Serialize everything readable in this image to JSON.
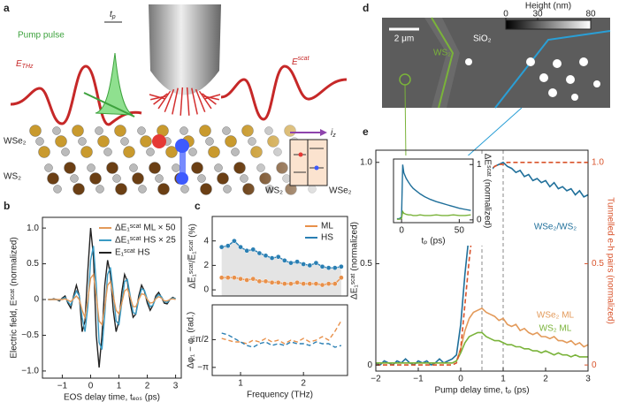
{
  "panel_labels": [
    "a",
    "b",
    "c",
    "d",
    "e"
  ],
  "panel_a": {
    "pump_pulse": "Pump pulse",
    "t_p": [
      "t",
      "p"
    ],
    "e_thz": [
      "E",
      "THz"
    ],
    "e_scat": [
      "E",
      "scat"
    ],
    "i_z": [
      "i",
      "z"
    ],
    "layers": [
      "WSe₂",
      "WS₂"
    ],
    "junction": [
      "WS₂",
      "WSe₂"
    ]
  },
  "panel_d": {
    "scale_bar": "2 μm",
    "substrate": "SiO₂",
    "flake": "WS₂",
    "colorbar": {
      "title": "Height (nm)",
      "lim": [
        0,
        80
      ],
      "ticks": [
        0,
        30,
        80
      ]
    }
  },
  "chart_data": [
    {
      "type": "line",
      "xlabel": "EOS delay time, tₑₒₛ (ps)",
      "ylabel": "Electric field, Eˢᶜᵃᵗ (normalized)",
      "x": [
        -1.5,
        -1.4,
        -1.3,
        -1.2,
        -1.1,
        -1,
        -0.9,
        -0.8,
        -0.7,
        -0.6,
        -0.5,
        -0.4,
        -0.3,
        -0.2,
        -0.1,
        0,
        0.1,
        0.2,
        0.3,
        0.4,
        0.5,
        0.6,
        0.7,
        0.8,
        0.9,
        1,
        1.1,
        1.2,
        1.3,
        1.4,
        1.5,
        1.6,
        1.7,
        1.8,
        1.9,
        2,
        2.1,
        2.2,
        2.3,
        2.4,
        2.5,
        2.6,
        2.7,
        2.8,
        2.9,
        3
      ],
      "series": [
        {
          "name": "ΔE₁ˢᶜᵃᵗ ML × 50",
          "color": "#e39a5a",
          "values": [
            0,
            0,
            0,
            0,
            0,
            0,
            0.01,
            -0.01,
            -0.03,
            0.01,
            0.05,
            0,
            -0.15,
            -0.25,
            0,
            0.3,
            0.35,
            0.05,
            -0.3,
            -0.35,
            -0.1,
            0.2,
            0.25,
            0.05,
            -0.15,
            -0.2,
            -0.05,
            0.12,
            0.15,
            0.03,
            -0.1,
            -0.1,
            0,
            0.08,
            0.07,
            0,
            -0.05,
            -0.04,
            0.01,
            0.04,
            0.02,
            -0.02,
            -0.02,
            0,
            0.01,
            0
          ]
        },
        {
          "name": "ΔE₁ˢᶜᵃᵗ HS × 25",
          "color": "#3a9bc4",
          "values": [
            0,
            0,
            0,
            0,
            -0.01,
            0.01,
            0.03,
            -0.03,
            -0.08,
            0.03,
            0.12,
            0.05,
            -0.25,
            -0.45,
            -0.1,
            0.55,
            0.75,
            0.2,
            -0.6,
            -0.7,
            -0.2,
            0.35,
            0.45,
            0.1,
            -0.3,
            -0.35,
            -0.05,
            0.25,
            0.28,
            0.05,
            -0.18,
            -0.2,
            0,
            0.15,
            0.13,
            0,
            -0.1,
            -0.08,
            0.02,
            0.07,
            0.04,
            -0.03,
            -0.04,
            0,
            0.02,
            0.01
          ]
        },
        {
          "name": "E₁ˢᶜᵃᵗ HS",
          "color": "#222222",
          "values": [
            0,
            0,
            0.01,
            0,
            -0.02,
            0.02,
            0.05,
            -0.05,
            -0.12,
            0.05,
            0.2,
            0.05,
            -0.45,
            -0.3,
            0.4,
            1,
            0.6,
            -0.5,
            -0.95,
            -0.5,
            0.2,
            0.55,
            0.35,
            -0.15,
            -0.45,
            -0.3,
            0.1,
            0.35,
            0.25,
            -0.05,
            -0.25,
            -0.2,
            0.05,
            0.2,
            0.12,
            -0.05,
            -0.15,
            -0.08,
            0.05,
            0.1,
            0.03,
            -0.05,
            -0.06,
            0,
            0.03,
            0.01
          ]
        }
      ],
      "xlim": [
        -1.7,
        3.2
      ],
      "xticks": [
        {
          "value": -1,
          "label": "−1"
        },
        0,
        1,
        2,
        3
      ],
      "ylim": [
        -1.1,
        1.15
      ],
      "yticks": [
        {
          "value": -1,
          "label": "−1.0"
        },
        {
          "value": -0.5,
          "label": "−0.5"
        },
        0,
        0.5,
        {
          "value": 1,
          "label": "1.0"
        }
      ]
    },
    {
      "type": "line",
      "markers": true,
      "ylabel": "ΔE̅₁ˢᶜᵃᵗ/E̅₁ˢᶜᵃᵗ (%)",
      "x": [
        0.7,
        0.8,
        0.9,
        1,
        1.1,
        1.2,
        1.3,
        1.4,
        1.5,
        1.6,
        1.7,
        1.8,
        1.9,
        2,
        2.1,
        2.2,
        2.3,
        2.4,
        2.5,
        2.6
      ],
      "series": [
        {
          "name": "ML",
          "color": "#e8904a",
          "values": [
            1,
            1,
            1,
            0.9,
            0.8,
            0.9,
            0.7,
            0.7,
            0.6,
            0.6,
            0.5,
            0.5,
            0.6,
            0.5,
            0.5,
            0.5,
            0.4,
            0.5,
            0.5,
            1
          ]
        },
        {
          "name": "HS",
          "color": "#2a7fb3",
          "fill": "#e4e4e4",
          "values": [
            3.5,
            3.6,
            4,
            3.5,
            3.2,
            3.3,
            3,
            2.8,
            2.6,
            2.7,
            2.4,
            2.2,
            2.3,
            2.1,
            2,
            2.2,
            1.9,
            1.8,
            1.8,
            1.9
          ]
        }
      ],
      "xlim": [
        0.55,
        2.7
      ],
      "ylim": [
        -0.5,
        6
      ],
      "yticks": [
        0,
        2,
        4
      ]
    },
    {
      "type": "line",
      "dashed": true,
      "xlabel": "Frequency (THz)",
      "ylabel": "Δφ₁ − φ₁ (rad.)",
      "x": [
        0.7,
        0.8,
        0.9,
        1,
        1.1,
        1.2,
        1.3,
        1.4,
        1.5,
        1.6,
        1.7,
        1.8,
        1.9,
        2,
        2.1,
        2.2,
        2.3,
        2.4,
        2.5,
        2.6
      ],
      "series": [
        {
          "color": "#e8904a",
          "values": [
            -1.5,
            -1.6,
            -1.7,
            -1.7,
            -1.8,
            -1.6,
            -1.7,
            -1.5,
            -1.7,
            -1.6,
            -1.8,
            -1.6,
            -1.7,
            -1.5,
            -1.7,
            -1.6,
            -1.4,
            -1.6,
            -1.1,
            -0.5
          ]
        },
        {
          "color": "#2a7fb3",
          "values": [
            -1.2,
            -1.3,
            -1.5,
            -1.7,
            -1.9,
            -2,
            -1.8,
            -1.7,
            -1.9,
            -1.8,
            -1.9,
            -1.7,
            -1.8,
            -1.8,
            -1.9,
            -1.7,
            -1.8,
            -1.8,
            -2,
            -1.9
          ]
        }
      ],
      "xlim": [
        0.55,
        2.7
      ],
      "xticks": [
        1,
        2
      ],
      "ylim": [
        -3.6,
        0.4
      ],
      "yticks": [
        {
          "value": -3.14159,
          "label": "−π"
        },
        {
          "value": -1.5708,
          "label": "−π/2"
        }
      ]
    },
    {
      "type": "line",
      "xlabel": "Pump delay time, tₚ (ps)",
      "ylabel": "ΔE₁ˢᶜᵃᵗ (normalized)",
      "x": [
        -2,
        -1.9,
        -1.8,
        -1.7,
        -1.6,
        -1.5,
        -1.4,
        -1.3,
        -1.2,
        -1.1,
        -1,
        -0.9,
        -0.8,
        -0.7,
        -0.6,
        -0.5,
        -0.4,
        -0.3,
        -0.2,
        -0.1,
        0,
        0.1,
        0.2,
        0.3,
        0.4,
        0.5,
        0.6,
        0.7,
        0.8,
        0.9,
        1,
        1.1,
        1.2,
        1.3,
        1.4,
        1.5,
        1.6,
        1.7,
        1.8,
        1.9,
        2,
        2.1,
        2.2,
        2.3,
        2.4,
        2.5,
        2.6,
        2.7,
        2.8,
        2.9,
        3
      ],
      "series": [
        {
          "name": "WSe₂/WS₂",
          "color": "#1f6f9a",
          "values": [
            0.01,
            0,
            0.02,
            0.01,
            0,
            0.02,
            0.01,
            0.03,
            0.01,
            0,
            0.02,
            0.01,
            0.02,
            0,
            0.01,
            0.03,
            0.01,
            0.02,
            0.03,
            0.05,
            0.2,
            0.45,
            0.65,
            0.78,
            0.86,
            0.9,
            0.93,
            0.96,
            0.98,
            0.99,
            1,
            0.98,
            0.97,
            0.95,
            0.96,
            0.93,
            0.94,
            0.91,
            0.92,
            0.9,
            0.91,
            0.88,
            0.9,
            0.87,
            0.88,
            0.86,
            0.87,
            0.84,
            0.86,
            0.83,
            0.84
          ]
        },
        {
          "name": "WSe₂ ML",
          "color": "#e39a5a",
          "values": [
            0.01,
            0.01,
            0.01,
            0.01,
            0.01,
            0.01,
            0.01,
            0.01,
            0.01,
            0.01,
            0.01,
            0.01,
            0.01,
            0.01,
            0.01,
            0.01,
            0.01,
            0.01,
            0.01,
            0.02,
            0.08,
            0.17,
            0.23,
            0.26,
            0.27,
            0.28,
            0.26,
            0.25,
            0.24,
            0.22,
            0.23,
            0.2,
            0.19,
            0.2,
            0.17,
            0.18,
            0.16,
            0.15,
            0.16,
            0.14,
            0.14,
            0.13,
            0.14,
            0.12,
            0.12,
            0.11,
            0.12,
            0.1,
            0.11,
            0.09,
            0.1
          ]
        },
        {
          "name": "WS₂ ML",
          "color": "#7ab33a",
          "values": [
            0.01,
            0.01,
            0.01,
            0.01,
            0.01,
            0.01,
            0.01,
            0.01,
            0.01,
            0.01,
            0.01,
            0.01,
            0.01,
            0.01,
            0.01,
            0.01,
            0.01,
            0.01,
            0.01,
            0.02,
            0.06,
            0.11,
            0.14,
            0.15,
            0.16,
            0.16,
            0.14,
            0.13,
            0.12,
            0.12,
            0.11,
            0.1,
            0.1,
            0.09,
            0.09,
            0.08,
            0.08,
            0.07,
            0.07,
            0.06,
            0.07,
            0.06,
            0.05,
            0.06,
            0.05,
            0.05,
            0.04,
            0.05,
            0.04,
            0.04,
            0.04
          ]
        },
        {
          "name": "Tunnelled e-h pairs (normalized)",
          "color": "#d9532b",
          "axis": "y2",
          "dashed": true,
          "values": [
            0,
            0,
            0,
            0,
            0,
            0,
            0,
            0,
            0,
            0,
            0,
            0,
            0,
            0,
            0,
            0,
            0,
            0,
            0,
            0.01,
            0.08,
            0.3,
            0.52,
            0.7,
            0.82,
            0.9,
            0.94,
            0.96,
            0.98,
            0.99,
            0.99,
            1,
            1,
            1,
            1,
            1,
            1,
            1,
            1,
            1,
            1,
            1,
            1,
            1,
            1,
            1,
            1,
            1,
            1,
            1,
            1
          ]
        }
      ],
      "xlim": [
        -2,
        3
      ],
      "xticks": [
        {
          "value": -2,
          "label": "−2"
        },
        {
          "value": -1,
          "label": "−1"
        },
        0,
        1,
        2,
        3
      ],
      "ylim": [
        -0.03,
        1.06
      ],
      "yticks": [
        0,
        0.5,
        {
          "value": 1,
          "label": "1.0"
        }
      ],
      "y2lim": [
        -0.03,
        1.06
      ],
      "y2ticks": [
        0,
        0.5,
        {
          "value": 1,
          "label": "1.0"
        }
      ],
      "vlines": [
        0.5,
        1
      ]
    },
    {
      "type": "line",
      "xlabel": "tₚ (ps)",
      "ylabel": "ΔEˢᶜᵃᵗ (normalized)",
      "x": [
        -4,
        -2,
        0,
        1,
        2,
        4,
        6,
        8,
        10,
        13,
        16,
        20,
        25,
        30,
        35,
        40,
        45,
        50,
        55,
        60
      ],
      "series": [
        {
          "color": "#1f6f9a",
          "values": [
            0.02,
            0.02,
            0.05,
            1,
            0.85,
            0.75,
            0.68,
            0.62,
            0.57,
            0.52,
            0.47,
            0.42,
            0.37,
            0.33,
            0.3,
            0.27,
            0.24,
            0.21,
            0.19,
            0.17
          ]
        },
        {
          "color": "#7ab33a",
          "values": [
            0.01,
            0.01,
            0.02,
            0.15,
            0.12,
            0.1,
            0.09,
            0.09,
            0.08,
            0.08,
            0.09,
            0.08,
            0.08,
            0.09,
            0.08,
            0.08,
            0.09,
            0.08,
            0.08,
            0.09
          ]
        }
      ],
      "xlim": [
        -7,
        62
      ],
      "xticks": [
        0,
        50
      ],
      "ylim": [
        -0.05,
        1.1
      ],
      "yticks": [
        0,
        1
      ]
    }
  ]
}
